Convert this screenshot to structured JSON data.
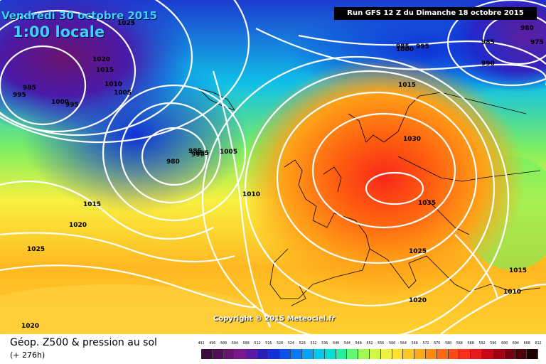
{
  "header": {
    "date": "Vendredi 30 octobre 2015",
    "time": "1:00 locale",
    "run": "Run GFS 12 Z du Dimanche 18 octobre 2015"
  },
  "footer": {
    "title": "Géop. Z500 & pression au sol",
    "lead": "(+ 276h)",
    "copyright": "Copyright © 2015 Meteociel.fr"
  },
  "isobar_labels": [
    "1025",
    "980",
    "975",
    "1020",
    "1015",
    "985",
    "995",
    "1000",
    "995",
    "985",
    "990",
    "1010",
    "1005",
    "1015",
    "980",
    "985",
    "990",
    "995",
    "1000",
    "1030",
    "985",
    "995",
    "1005",
    "1010",
    "1035",
    "1015",
    "1020",
    "1025",
    "1025",
    "1015",
    "1010",
    "1020",
    "1020"
  ],
  "colors": {
    "scale": [
      "#3a0a3a",
      "#520f55",
      "#6a1470",
      "#7a1a8a",
      "#5a1aa0",
      "#2a20b8",
      "#1430d8",
      "#0c50f0",
      "#0a78f8",
      "#00a4f8",
      "#00c8f0",
      "#00e0d0",
      "#20f0a0",
      "#60f870",
      "#a0f850",
      "#d0f840",
      "#f0f040",
      "#ffe030",
      "#ffc820",
      "#ffa818",
      "#ff8810",
      "#ff6810",
      "#ff4818",
      "#f83020",
      "#e81a20",
      "#c80818",
      "#a00010",
      "#780010",
      "#500008",
      "#200000"
    ],
    "scale_labels": [
      "492",
      "496",
      "500",
      "504",
      "508",
      "512",
      "516",
      "520",
      "524",
      "528",
      "532",
      "536",
      "540",
      "544",
      "548",
      "552",
      "556",
      "560",
      "564",
      "568",
      "572",
      "576",
      "580",
      "584",
      "588",
      "592",
      "596",
      "600",
      "604",
      "608",
      "612"
    ]
  }
}
